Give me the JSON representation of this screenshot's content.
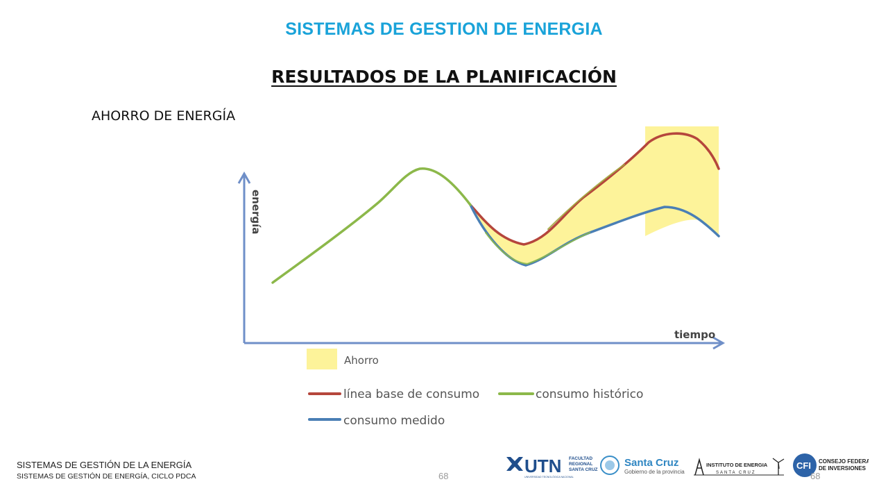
{
  "header": {
    "top_title": "SISTEMAS DE GESTION DE ENERGIA",
    "slide_title": "RESULTADOS DE LA PLANIFICACIÓN",
    "section_label": "AHORRO DE ENERGÍA"
  },
  "diagram": {
    "y_axis_label": "energía",
    "x_axis_label": "tiempo",
    "legend": {
      "savings": "Ahorro",
      "baseline": "línea base de consumo",
      "historical": "consumo histórico",
      "measured": "consumo medido"
    },
    "colors": {
      "savings_fill": "#fdf39a",
      "baseline": "#b5463c",
      "historical": "#8cb84a",
      "measured": "#4a7fb5",
      "axis": "#6f8fc8"
    }
  },
  "footer": {
    "title": "SISTEMAS DE GESTIÓN DE LA ENERGÍA",
    "subtitle": "SISTEMAS DE GESTIÓN DE ENERGÍA, CICLO PDCA",
    "page_center": "68",
    "page_right": "68"
  },
  "logos": {
    "utn_main": "UTN",
    "utn_faculty_1": "FACULTAD",
    "utn_faculty_2": "REGIONAL",
    "utn_faculty_3": "SANTA CRUZ",
    "utn_university": "UNIVERSIDAD TECNOLÓGICA NACIONAL",
    "santa_cruz_main": "Santa Cruz",
    "santa_cruz_sub": "Gobierno de la provincia",
    "instituto_main": "INSTITUTO DE ENERGIA",
    "instituto_sub": "SANTA CRUZ",
    "cfi_mark": "CFI",
    "cfi_line1": "CONSEJO FEDERAL",
    "cfi_line2": "DE INVERSIONES"
  }
}
